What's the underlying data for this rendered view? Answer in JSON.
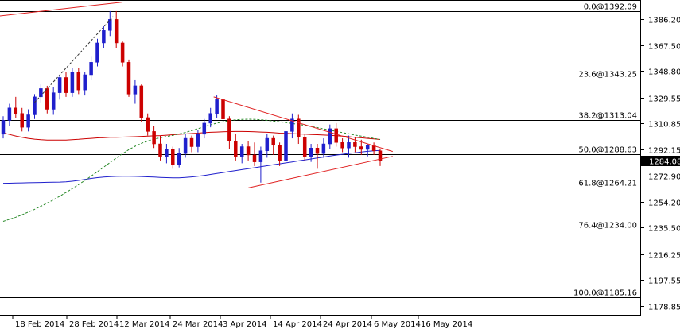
{
  "chart_data": {
    "type": "candlestick",
    "instrument": "",
    "timeframe": "daily",
    "y_axis": {
      "position": "right",
      "ylim": [
        1172.5,
        1400.0
      ],
      "ticks": [
        "1386.20",
        "1367.50",
        "1348.80",
        "1329.55",
        "1310.85",
        "1292.15",
        "1272.90",
        "1254.20",
        "1235.50",
        "1216.25",
        "1197.55",
        "1178.85"
      ]
    },
    "x_axis": {
      "ticks": [
        "18 Feb 2014",
        "28 Feb 2014",
        "12 Mar 2014",
        "24 Mar 2014",
        "3 Apr 2014",
        "14 Apr 2014",
        "24 Apr 2014",
        "6 May 2014",
        "16 May 2014"
      ]
    },
    "current_price": {
      "label": "1284.08",
      "value": 1284.08
    },
    "fibonacci_levels": [
      {
        "label": "0.0@1392.09",
        "value": 1392.09
      },
      {
        "label": "23.6@1343.25",
        "value": 1343.25
      },
      {
        "label": "38.2@1313.04",
        "value": 1313.04
      },
      {
        "label": "50.0@1288.63",
        "value": 1288.63
      },
      {
        "label": "61.8@1264.21",
        "value": 1264.21
      },
      {
        "label": "76.4@1234.00",
        "value": 1234.0
      },
      {
        "label": "100.0@1185.16",
        "value": 1185.16
      }
    ],
    "candles": [
      {
        "o": 1303,
        "h": 1316,
        "l": 1300,
        "c": 1313
      },
      {
        "o": 1313,
        "h": 1325,
        "l": 1309,
        "c": 1322
      },
      {
        "o": 1322,
        "h": 1330,
        "l": 1315,
        "c": 1318
      },
      {
        "o": 1318,
        "h": 1322,
        "l": 1305,
        "c": 1308
      },
      {
        "o": 1308,
        "h": 1321,
        "l": 1305,
        "c": 1317
      },
      {
        "o": 1317,
        "h": 1332,
        "l": 1314,
        "c": 1330
      },
      {
        "o": 1330,
        "h": 1339,
        "l": 1326,
        "c": 1336
      },
      {
        "o": 1336,
        "h": 1338,
        "l": 1318,
        "c": 1321
      },
      {
        "o": 1321,
        "h": 1337,
        "l": 1317,
        "c": 1333
      },
      {
        "o": 1333,
        "h": 1346,
        "l": 1328,
        "c": 1344
      },
      {
        "o": 1344,
        "h": 1348,
        "l": 1330,
        "c": 1333
      },
      {
        "o": 1333,
        "h": 1351,
        "l": 1330,
        "c": 1348
      },
      {
        "o": 1348,
        "h": 1351,
        "l": 1332,
        "c": 1335
      },
      {
        "o": 1335,
        "h": 1348,
        "l": 1331,
        "c": 1346
      },
      {
        "o": 1346,
        "h": 1359,
        "l": 1342,
        "c": 1355
      },
      {
        "o": 1355,
        "h": 1372,
        "l": 1352,
        "c": 1369
      },
      {
        "o": 1369,
        "h": 1381,
        "l": 1365,
        "c": 1378
      },
      {
        "o": 1378,
        "h": 1392,
        "l": 1374,
        "c": 1386
      },
      {
        "o": 1386,
        "h": 1392,
        "l": 1365,
        "c": 1369
      },
      {
        "o": 1369,
        "h": 1370,
        "l": 1352,
        "c": 1355
      },
      {
        "o": 1355,
        "h": 1357,
        "l": 1330,
        "c": 1332
      },
      {
        "o": 1332,
        "h": 1342,
        "l": 1325,
        "c": 1338
      },
      {
        "o": 1338,
        "h": 1339,
        "l": 1312,
        "c": 1315
      },
      {
        "o": 1315,
        "h": 1318,
        "l": 1302,
        "c": 1305
      },
      {
        "o": 1305,
        "h": 1309,
        "l": 1293,
        "c": 1296
      },
      {
        "o": 1296,
        "h": 1302,
        "l": 1284,
        "c": 1287
      },
      {
        "o": 1287,
        "h": 1296,
        "l": 1282,
        "c": 1292
      },
      {
        "o": 1292,
        "h": 1294,
        "l": 1278,
        "c": 1281
      },
      {
        "o": 1281,
        "h": 1293,
        "l": 1279,
        "c": 1289
      },
      {
        "o": 1289,
        "h": 1303,
        "l": 1286,
        "c": 1300
      },
      {
        "o": 1300,
        "h": 1302,
        "l": 1290,
        "c": 1294
      },
      {
        "o": 1294,
        "h": 1306,
        "l": 1290,
        "c": 1303
      },
      {
        "o": 1303,
        "h": 1314,
        "l": 1300,
        "c": 1311
      },
      {
        "o": 1311,
        "h": 1322,
        "l": 1308,
        "c": 1318
      },
      {
        "o": 1318,
        "h": 1331,
        "l": 1315,
        "c": 1328
      },
      {
        "o": 1328,
        "h": 1331,
        "l": 1310,
        "c": 1314
      },
      {
        "o": 1314,
        "h": 1316,
        "l": 1292,
        "c": 1298
      },
      {
        "o": 1298,
        "h": 1303,
        "l": 1284,
        "c": 1287
      },
      {
        "o": 1287,
        "h": 1296,
        "l": 1282,
        "c": 1294
      },
      {
        "o": 1294,
        "h": 1298,
        "l": 1284,
        "c": 1288
      },
      {
        "o": 1288,
        "h": 1297,
        "l": 1280,
        "c": 1283
      },
      {
        "o": 1283,
        "h": 1294,
        "l": 1268,
        "c": 1291
      },
      {
        "o": 1291,
        "h": 1303,
        "l": 1286,
        "c": 1300
      },
      {
        "o": 1300,
        "h": 1302,
        "l": 1288,
        "c": 1295
      },
      {
        "o": 1295,
        "h": 1297,
        "l": 1280,
        "c": 1284
      },
      {
        "o": 1284,
        "h": 1309,
        "l": 1281,
        "c": 1305
      },
      {
        "o": 1305,
        "h": 1318,
        "l": 1300,
        "c": 1314
      },
      {
        "o": 1314,
        "h": 1317,
        "l": 1296,
        "c": 1301
      },
      {
        "o": 1301,
        "h": 1303,
        "l": 1284,
        "c": 1287
      },
      {
        "o": 1287,
        "h": 1296,
        "l": 1283,
        "c": 1293
      },
      {
        "o": 1293,
        "h": 1296,
        "l": 1278,
        "c": 1289
      },
      {
        "o": 1289,
        "h": 1300,
        "l": 1286,
        "c": 1296
      },
      {
        "o": 1296,
        "h": 1310,
        "l": 1292,
        "c": 1307
      },
      {
        "o": 1307,
        "h": 1311,
        "l": 1294,
        "c": 1297
      },
      {
        "o": 1297,
        "h": 1300,
        "l": 1290,
        "c": 1293
      },
      {
        "o": 1293,
        "h": 1302,
        "l": 1286,
        "c": 1297
      },
      {
        "o": 1297,
        "h": 1301,
        "l": 1290,
        "c": 1294
      },
      {
        "o": 1294,
        "h": 1299,
        "l": 1288,
        "c": 1292
      },
      {
        "o": 1292,
        "h": 1296,
        "l": 1287,
        "c": 1295
      },
      {
        "o": 1295,
        "h": 1297,
        "l": 1288,
        "c": 1291
      },
      {
        "o": 1291,
        "h": 1292,
        "l": 1280,
        "c": 1284
      }
    ],
    "moving_averages": [
      {
        "color": "#cc0000",
        "style": "solid",
        "values": [
          1304.0,
          1302.8,
          1301.7,
          1300.8,
          1300.0,
          1299.4,
          1299.0,
          1298.8,
          1298.7,
          1298.7,
          1298.8,
          1299.0,
          1299.3,
          1299.7,
          1300.0,
          1300.3,
          1300.5,
          1300.7,
          1300.8,
          1300.9,
          1301.0,
          1301.2,
          1301.4,
          1301.6,
          1301.8,
          1302.0,
          1302.3,
          1302.6,
          1302.9,
          1303.2,
          1303.5,
          1303.8,
          1304.1,
          1304.4,
          1304.6,
          1304.8,
          1304.9,
          1305.0,
          1305.0,
          1304.9,
          1304.8,
          1304.6,
          1304.4,
          1304.1,
          1303.8,
          1303.6,
          1303.4,
          1303.2,
          1303.0,
          1302.8,
          1302.6,
          1302.4,
          1302.2,
          1301.9,
          1301.6,
          1301.2,
          1300.8,
          1300.4,
          1300.0,
          1299.6,
          1299.2
        ]
      },
      {
        "color": "#1f1fcc",
        "style": "solid",
        "values": [
          1267.5,
          1267.6,
          1267.7,
          1267.8,
          1267.9,
          1268.0,
          1268.1,
          1268.2,
          1268.3,
          1268.4,
          1268.6,
          1269.0,
          1269.6,
          1270.3,
          1271.0,
          1271.6,
          1272.0,
          1272.3,
          1272.5,
          1272.6,
          1272.6,
          1272.5,
          1272.4,
          1272.2,
          1272.0,
          1271.8,
          1271.6,
          1271.5,
          1271.5,
          1271.7,
          1272.1,
          1272.6,
          1273.2,
          1273.9,
          1274.6,
          1275.3,
          1276.0,
          1276.7,
          1277.4,
          1278.1,
          1278.8,
          1279.5,
          1280.2,
          1280.9,
          1281.6,
          1282.3,
          1283.0,
          1283.7,
          1284.4,
          1285.1,
          1285.8,
          1286.5,
          1287.2,
          1287.9,
          1288.5,
          1289.1,
          1289.6,
          1290.1,
          1290.6,
          1291.0,
          1291.3
        ]
      },
      {
        "color": "#2a8a2a",
        "style": "dashed",
        "values": [
          1240.0,
          1241.5,
          1243.0,
          1244.8,
          1246.7,
          1248.7,
          1250.9,
          1253.2,
          1255.6,
          1258.2,
          1260.9,
          1263.7,
          1266.6,
          1269.6,
          1272.7,
          1275.9,
          1279.2,
          1282.5,
          1285.8,
          1288.9,
          1291.8,
          1294.3,
          1296.4,
          1298.1,
          1299.4,
          1300.4,
          1301.3,
          1302.2,
          1303.2,
          1304.3,
          1305.6,
          1307.0,
          1308.4,
          1309.8,
          1311.0,
          1312.0,
          1312.8,
          1313.4,
          1313.7,
          1313.8,
          1313.7,
          1313.4,
          1313.0,
          1312.5,
          1312.0,
          1311.4,
          1310.8,
          1310.1,
          1309.4,
          1308.6,
          1307.8,
          1306.9,
          1306.0,
          1305.1,
          1304.2,
          1303.3,
          1302.4,
          1301.6,
          1300.8,
          1300.0,
          1299.2
        ]
      }
    ],
    "trendlines": [
      {
        "color": "#e02020",
        "from": {
          "i": -1.5,
          "v": 1388.0
        },
        "to": {
          "i": 19.0,
          "v": 1398.5
        }
      },
      {
        "color": "#e02020",
        "from": {
          "i": 33.5,
          "v": 1330.0
        },
        "to": {
          "i": 62.0,
          "v": 1290.5
        }
      },
      {
        "color": "#e02020",
        "from": {
          "i": 39.0,
          "v": 1264.2
        },
        "to": {
          "i": 62.0,
          "v": 1287.0
        }
      },
      {
        "color": "#333333",
        "dashed": true,
        "from": {
          "i": 5.0,
          "v": 1326.0
        },
        "to": {
          "i": 17.5,
          "v": 1388.0
        }
      }
    ],
    "colors": {
      "bull": "#1f1fcc",
      "bear": "#cc0000",
      "fib_line": "#000000",
      "current_price_line": "#8a8ab8",
      "axis_tag_bg": "#000000",
      "axis_tag_fg": "#ffffff",
      "background": "#ffffff",
      "axis_text": "#000000"
    }
  }
}
